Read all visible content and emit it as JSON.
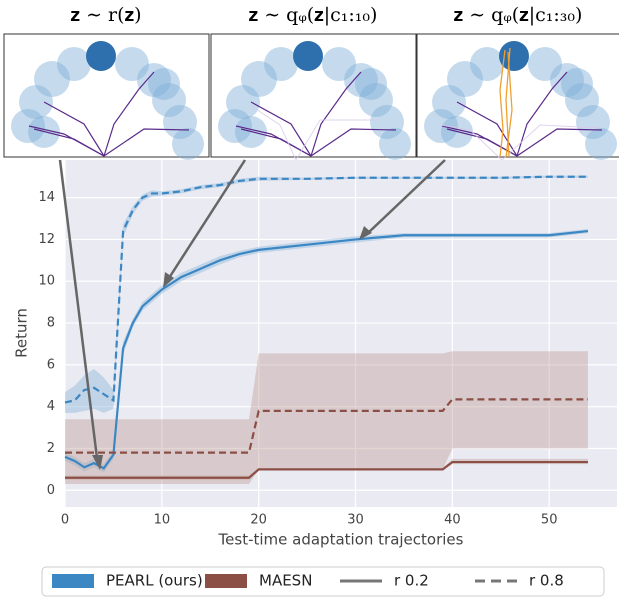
{
  "chart_data": {
    "type": "line",
    "xlabel": "Test-time adaptation trajectories",
    "ylabel": "Return",
    "x": [
      0,
      1,
      2,
      3,
      4,
      5,
      6,
      7,
      8,
      9,
      10,
      12,
      14,
      16,
      18,
      19,
      20,
      25,
      30,
      35,
      39,
      40,
      45,
      50,
      54
    ],
    "xlim": [
      0,
      57
    ],
    "xticks": [
      0,
      10,
      20,
      30,
      40,
      50
    ],
    "ylim": [
      -0.8,
      15.8
    ],
    "yticks": [
      0,
      2,
      4,
      6,
      8,
      10,
      12,
      14
    ],
    "grid": true,
    "series": [
      {
        "color": "#3a87c4",
        "band_color": "#8fb8d9",
        "dashed": false,
        "values": [
          1.6,
          1.4,
          1.1,
          1.3,
          1.05,
          1.7,
          6.8,
          8.0,
          8.8,
          9.2,
          9.6,
          10.2,
          10.6,
          11.0,
          11.3,
          11.4,
          11.5,
          11.75,
          12.0,
          12.2,
          12.2,
          12.2,
          12.2,
          12.2,
          12.4
        ],
        "lower": [
          1.4,
          1.2,
          0.9,
          1.1,
          0.85,
          1.5,
          6.5,
          7.8,
          8.6,
          9.0,
          9.4,
          10.0,
          10.4,
          10.8,
          11.15,
          11.25,
          11.35,
          11.6,
          11.85,
          12.1,
          12.1,
          12.1,
          12.1,
          12.1,
          12.3
        ],
        "upper": [
          1.8,
          1.6,
          1.3,
          1.5,
          1.25,
          1.9,
          7.1,
          8.2,
          9.0,
          9.4,
          9.8,
          10.4,
          10.8,
          11.2,
          11.45,
          11.55,
          11.65,
          11.9,
          12.15,
          12.3,
          12.3,
          12.3,
          12.3,
          12.3,
          12.5
        ]
      },
      {
        "color": "#3a87c4",
        "band_color": "#8fb8d9",
        "dashed": true,
        "values": [
          4.2,
          4.3,
          4.8,
          4.9,
          4.6,
          4.3,
          12.4,
          13.4,
          14.0,
          14.2,
          14.2,
          14.3,
          14.5,
          14.6,
          14.8,
          14.85,
          14.9,
          14.9,
          14.95,
          14.95,
          14.95,
          14.95,
          14.95,
          15.0,
          15.0
        ],
        "lower": [
          3.7,
          3.7,
          3.8,
          3.9,
          3.7,
          3.9,
          12.1,
          13.2,
          13.85,
          14.05,
          14.1,
          14.2,
          14.4,
          14.5,
          14.7,
          14.75,
          14.8,
          14.85,
          14.9,
          14.9,
          14.9,
          14.9,
          14.9,
          14.95,
          14.95
        ],
        "upper": [
          4.7,
          5.0,
          5.5,
          5.8,
          5.4,
          4.8,
          12.7,
          13.6,
          14.15,
          14.35,
          14.3,
          14.4,
          14.6,
          14.7,
          14.9,
          14.95,
          15.0,
          14.95,
          15.0,
          15.0,
          15.0,
          15.0,
          15.0,
          15.05,
          15.05
        ]
      },
      {
        "color": "#8c4f45",
        "band_color": "#c4a39e",
        "dashed": false,
        "values": [
          0.6,
          0.6,
          0.6,
          0.6,
          0.6,
          0.6,
          0.6,
          0.6,
          0.6,
          0.6,
          0.6,
          0.6,
          0.6,
          0.6,
          0.6,
          0.6,
          1.0,
          1.0,
          1.0,
          1.0,
          1.0,
          1.35,
          1.35,
          1.35,
          1.35
        ],
        "lower": [
          0.5,
          0.5,
          0.5,
          0.5,
          0.5,
          0.5,
          0.5,
          0.5,
          0.5,
          0.5,
          0.5,
          0.5,
          0.5,
          0.5,
          0.5,
          0.5,
          0.95,
          0.95,
          0.95,
          0.95,
          0.95,
          1.25,
          1.25,
          1.25,
          1.25
        ],
        "upper": [
          0.7,
          0.7,
          0.7,
          0.7,
          0.7,
          0.7,
          0.7,
          0.7,
          0.7,
          0.7,
          0.7,
          0.7,
          0.7,
          0.7,
          0.7,
          0.7,
          1.05,
          1.05,
          1.05,
          1.05,
          1.05,
          1.5,
          1.5,
          1.5,
          1.5
        ]
      },
      {
        "color": "#8c4f45",
        "band_color": "#c4a39e",
        "dashed": true,
        "values": [
          1.8,
          1.8,
          1.8,
          1.8,
          1.8,
          1.8,
          1.8,
          1.8,
          1.8,
          1.8,
          1.8,
          1.8,
          1.8,
          1.8,
          1.8,
          1.8,
          3.8,
          3.8,
          3.8,
          3.8,
          3.8,
          4.35,
          4.35,
          4.35,
          4.35
        ],
        "lower": [
          0.3,
          0.3,
          0.3,
          0.3,
          0.3,
          0.3,
          0.3,
          0.3,
          0.3,
          0.3,
          0.3,
          0.3,
          0.3,
          0.3,
          0.3,
          0.3,
          1.0,
          1.0,
          1.0,
          1.0,
          1.0,
          2.0,
          2.0,
          2.0,
          2.0
        ],
        "upper": [
          3.4,
          3.4,
          3.4,
          3.4,
          3.4,
          3.4,
          3.4,
          3.4,
          3.4,
          3.4,
          3.4,
          3.4,
          3.4,
          3.4,
          3.4,
          3.4,
          6.55,
          6.55,
          6.55,
          6.55,
          6.55,
          6.65,
          6.65,
          6.65,
          6.65
        ]
      }
    ],
    "legend": [
      {
        "label": "PEARL (ours)",
        "color": "#3a87c4",
        "kind": "patch"
      },
      {
        "label": "MAESN",
        "color": "#8c4f45",
        "kind": "patch"
      },
      {
        "label": "r 0.2",
        "color": "#777777",
        "kind": "solid"
      },
      {
        "label": "r 0.8",
        "color": "#777777",
        "kind": "dashed"
      }
    ],
    "insets": [
      {
        "title": "𝐳 ∼ r(𝐳)"
      },
      {
        "title": "𝐳 ∼ qᵩ(𝐳|c₁:₁₀)"
      },
      {
        "title": "𝐳 ∼ qᵩ(𝐳|c₁:₃₀)"
      }
    ]
  }
}
